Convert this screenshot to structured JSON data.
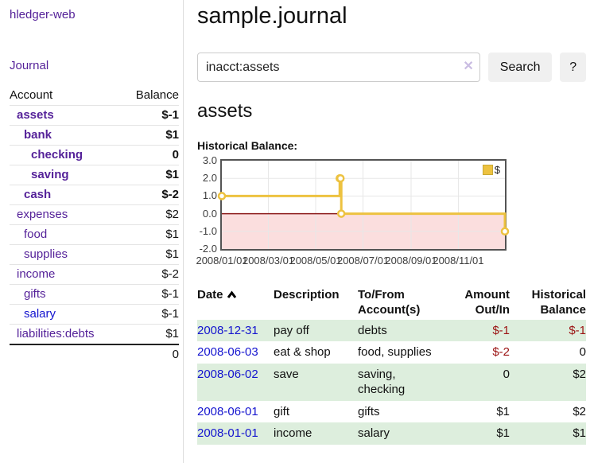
{
  "app": {
    "brand": "hledger-web",
    "nav_journal": "Journal"
  },
  "sidebar": {
    "columns": {
      "account": "Account",
      "balance": "Balance"
    },
    "accounts": [
      {
        "name": "assets",
        "indent": 0,
        "balance": "$-1",
        "bold": true,
        "neg": "strong"
      },
      {
        "name": "bank",
        "indent": 1,
        "balance": "$1",
        "bold": true
      },
      {
        "name": "checking",
        "indent": 2,
        "balance": "0",
        "bold": true
      },
      {
        "name": "saving",
        "indent": 2,
        "balance": "$1",
        "bold": true
      },
      {
        "name": "cash",
        "indent": 1,
        "balance": "$-2",
        "bold": true,
        "neg": "strong"
      },
      {
        "name": "expenses",
        "indent": 0,
        "balance": "$2"
      },
      {
        "name": "food",
        "indent": 1,
        "balance": "$1"
      },
      {
        "name": "supplies",
        "indent": 1,
        "balance": "$1"
      },
      {
        "name": "income",
        "indent": 0,
        "balance": "$-2",
        "neg": "muted"
      },
      {
        "name": "gifts",
        "indent": 1,
        "balance": "$-1",
        "neg": "muted"
      },
      {
        "name": "salary",
        "indent": 1,
        "balance": "$-1",
        "neg": "muted",
        "color": "blue"
      },
      {
        "name": "liabilities:debts",
        "indent": 0,
        "balance": "$1"
      }
    ],
    "total": "0"
  },
  "header": {
    "title": "sample.journal"
  },
  "search": {
    "value": "inacct:assets",
    "clear_icon": "✕",
    "search_button": "Search",
    "help_button": "?"
  },
  "account_page": {
    "heading": "assets",
    "chart_title": "Historical Balance:"
  },
  "chart_data": {
    "type": "line",
    "title": "Historical Balance:",
    "legend_label": "$",
    "legend_position": "top-right",
    "grid": true,
    "step": true,
    "series": [
      {
        "name": "$",
        "color": "#edc240",
        "points": [
          [
            "2008-01-01",
            1
          ],
          [
            "2008-06-01",
            2
          ],
          [
            "2008-06-02",
            2
          ],
          [
            "2008-06-03",
            0
          ],
          [
            "2008-12-31",
            -1
          ]
        ]
      }
    ],
    "ylim": [
      -2,
      3
    ],
    "yticks": [
      "3.0",
      "2.0",
      "1.0",
      "0.0",
      "-1.0",
      "-2.0"
    ],
    "xticks": [
      "2008/01/01",
      "2008/03/01",
      "2008/05/01",
      "2008/07/01",
      "2008/09/01",
      "2008/11/01"
    ],
    "x_start_date": "2008-01-01",
    "x_end_date": "2008-12-31",
    "negative_region_fill": "#fbdede",
    "zero_line_color": "#8c1a1a",
    "gridline_color": "#e7e7e7",
    "border_color": "#545454"
  },
  "register": {
    "headers": [
      "Date",
      "Description",
      "To/From Account(s)",
      "Amount Out/In",
      "Historical Balance"
    ],
    "rows": [
      {
        "date": "2008-12-31",
        "description": "pay off",
        "accounts": "debts",
        "amount": "$-1",
        "amount_neg": true,
        "balance": "$-1",
        "balance_neg": true
      },
      {
        "date": "2008-06-03",
        "description": "eat & shop",
        "accounts": "food, supplies",
        "amount": "$-2",
        "amount_neg": true,
        "balance": "0",
        "balance_neg": false
      },
      {
        "date": "2008-06-02",
        "description": "save",
        "accounts": "saving, checking",
        "amount": "0",
        "amount_neg": false,
        "balance": "$2",
        "balance_neg": false
      },
      {
        "date": "2008-06-01",
        "description": "gift",
        "accounts": "gifts",
        "amount": "$1",
        "amount_neg": false,
        "balance": "$2",
        "balance_neg": false
      },
      {
        "date": "2008-01-01",
        "description": "income",
        "accounts": "salary",
        "amount": "$1",
        "amount_neg": false,
        "balance": "$1",
        "balance_neg": false
      }
    ]
  }
}
